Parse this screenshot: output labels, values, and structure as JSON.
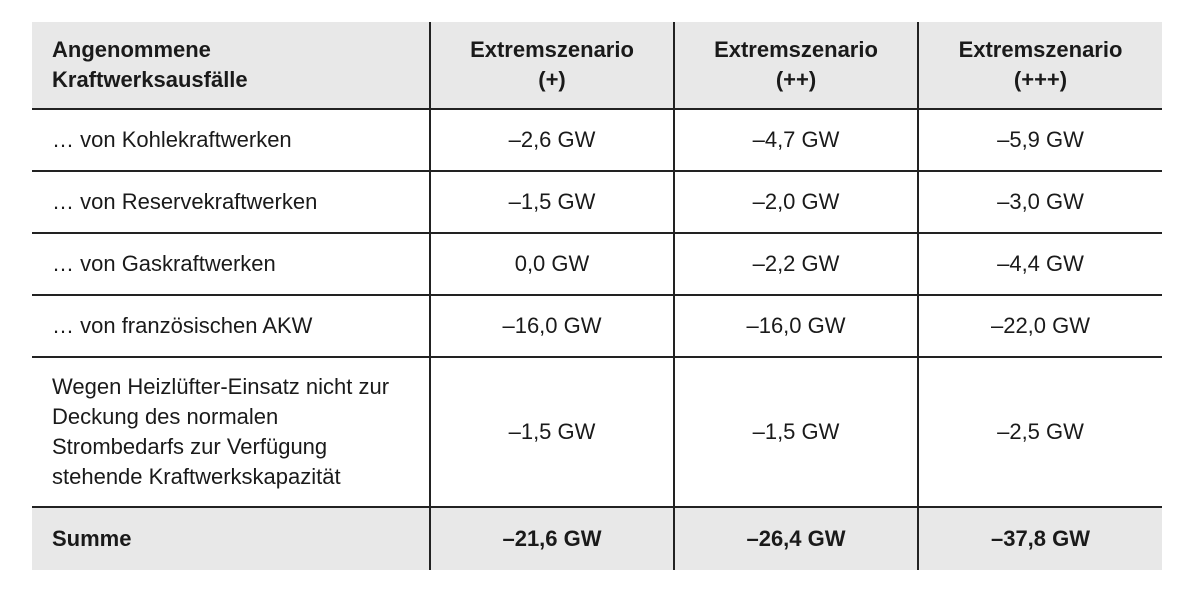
{
  "table": {
    "header": [
      "Angenommene Kraftwerksausfälle",
      "Extremszenario (+)",
      "Extremszenario (++)",
      "Extremszenario (+++)"
    ],
    "rows": [
      [
        "… von Kohlekraftwerken",
        "–2,6 GW",
        "–4,7 GW",
        "–5,9 GW"
      ],
      [
        "… von Reservekraftwerken",
        "–1,5 GW",
        "–2,0 GW",
        "–3,0 GW"
      ],
      [
        "… von Gaskraftwerken",
        "0,0 GW",
        "–2,2 GW",
        "–4,4 GW"
      ],
      [
        "… von französischen AKW",
        "–16,0 GW",
        "–16,0 GW",
        "–22,0 GW"
      ],
      [
        "Wegen Heizlüfter-Einsatz nicht zur Deckung des normalen Strombedarfs zur Verfügung stehende Kraftwerkskapazität",
        "–1,5 GW",
        "–1,5 GW",
        "–2,5 GW"
      ]
    ],
    "total": [
      "Summe",
      "–21,6 GW",
      "–26,4 GW",
      "–37,8 GW"
    ]
  }
}
